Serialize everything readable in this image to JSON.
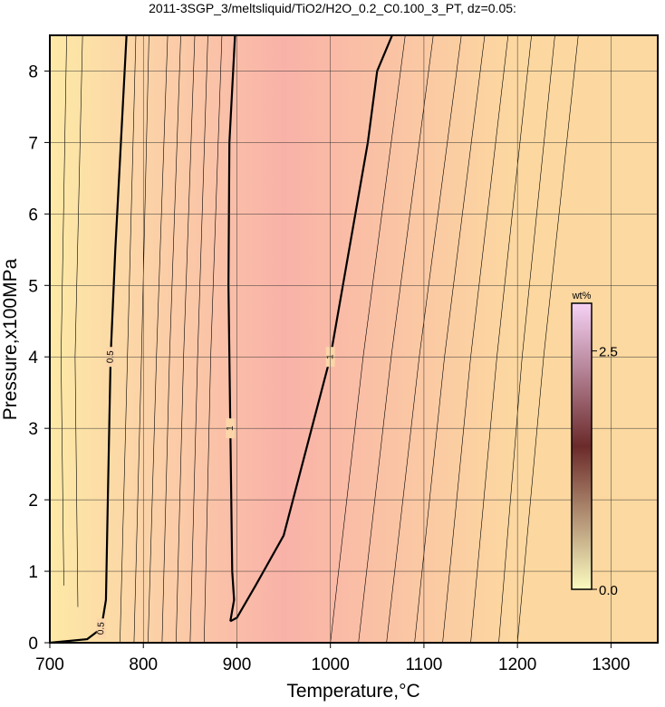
{
  "chart_data": {
    "type": "contour",
    "title": "2011-3SGP_3/meltsliquid/TiO2/H2O_0.2_C0.100_3_PT, dz=0.05:",
    "x_label": "Temperature,°C",
    "y_label": "Pressure,x100MPa",
    "xlim": [
      700,
      1350
    ],
    "ylim": [
      0,
      8.5
    ],
    "xticks": [
      700,
      800,
      900,
      1000,
      1100,
      1200,
      1300
    ],
    "yticks": [
      0,
      1,
      2,
      3,
      4,
      5,
      6,
      7,
      8
    ],
    "grid": true,
    "field": {
      "x": [
        700,
        950,
        1200,
        1350
      ],
      "colors": [
        "#fde9a6",
        "#f9b2a8",
        "#fcd8a0",
        "#fcd9a0"
      ]
    },
    "contours": [
      {
        "level": 0.5,
        "width": 2.2,
        "x": [
          700,
          740,
          755,
          760,
          762,
          765,
          770,
          778,
          782
        ],
        "y": [
          0,
          0.05,
          0.2,
          0.6,
          2,
          4,
          5.5,
          7.5,
          8.5
        ]
      },
      {
        "level": 1,
        "width": 2.2,
        "x": [
          893,
          895,
          897,
          895,
          893,
          891,
          892,
          898
        ],
        "y": [
          0.3,
          0.45,
          0.6,
          1,
          3,
          5,
          7,
          8.5
        ]
      },
      {
        "level": 1,
        "width": 2.2,
        "x": [
          893,
          900,
          920,
          950,
          980,
          1000,
          1020,
          1040,
          1050,
          1066
        ],
        "y": [
          0.3,
          0.35,
          0.8,
          1.5,
          3,
          4,
          5.5,
          7,
          8,
          8.5
        ]
      },
      {
        "width": 0.6,
        "x": [
          775,
          783,
          792
        ],
        "y": [
          0,
          4,
          8.5
        ]
      },
      {
        "width": 0.6,
        "x": [
          790,
          798,
          806
        ],
        "y": [
          0,
          4,
          8.5
        ]
      },
      {
        "width": 0.6,
        "x": [
          805,
          814,
          826
        ],
        "y": [
          0,
          4,
          8.5
        ]
      },
      {
        "width": 0.6,
        "x": [
          820,
          828,
          840
        ],
        "y": [
          0,
          4,
          8.5
        ]
      },
      {
        "width": 0.6,
        "x": [
          835,
          843,
          855
        ],
        "y": [
          0,
          4,
          8.5
        ]
      },
      {
        "width": 0.6,
        "x": [
          850,
          858,
          869
        ],
        "y": [
          0,
          4,
          8.5
        ]
      },
      {
        "width": 0.6,
        "x": [
          865,
          872,
          884
        ],
        "y": [
          0,
          4,
          8.5
        ]
      },
      {
        "width": 0.6,
        "x": [
          1000,
          1035,
          1080
        ],
        "y": [
          0,
          4,
          8.5
        ]
      },
      {
        "width": 0.6,
        "x": [
          1030,
          1065,
          1110
        ],
        "y": [
          0,
          4,
          8.5
        ]
      },
      {
        "width": 0.6,
        "x": [
          1060,
          1095,
          1140
        ],
        "y": [
          0,
          4,
          8.5
        ]
      },
      {
        "width": 0.6,
        "x": [
          1090,
          1122,
          1165
        ],
        "y": [
          0,
          4,
          8.5
        ]
      },
      {
        "width": 0.6,
        "x": [
          1120,
          1150,
          1190
        ],
        "y": [
          0,
          4,
          8.5
        ]
      },
      {
        "width": 0.6,
        "x": [
          1150,
          1178,
          1215
        ],
        "y": [
          0,
          4,
          8.5
        ]
      },
      {
        "width": 0.6,
        "x": [
          1180,
          1205,
          1240
        ],
        "y": [
          0,
          4,
          8.5
        ]
      },
      {
        "width": 0.6,
        "x": [
          1200,
          1228,
          1265
        ],
        "y": [
          0,
          4,
          8.5
        ]
      },
      {
        "width": 0.6,
        "x": [
          715,
          712,
          718
        ],
        "y": [
          0.8,
          4,
          8.5
        ]
      },
      {
        "width": 0.6,
        "x": [
          730,
          727,
          735
        ],
        "y": [
          0.5,
          4,
          8.5
        ]
      }
    ],
    "colorbar": {
      "label": "wt%",
      "clim": [
        0,
        3
      ],
      "colors": [
        "#fbfbc0",
        "#6b2a2a",
        "#f6d2f6"
      ],
      "ticks": [
        {
          "value": 0,
          "label": "0.0"
        },
        {
          "value": 2.5,
          "label": "2.5"
        }
      ]
    }
  }
}
